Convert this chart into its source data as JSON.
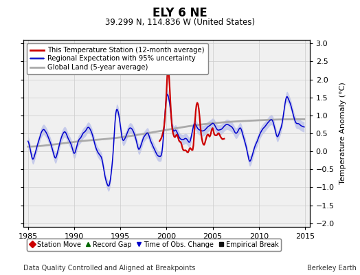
{
  "title": "ELY 6 NE",
  "subtitle": "39.299 N, 114.836 W (United States)",
  "ylabel": "Temperature Anomaly (°C)",
  "xlabel_left": "Data Quality Controlled and Aligned at Breakpoints",
  "xlabel_right": "Berkeley Earth",
  "xlim": [
    1984.5,
    2015.5
  ],
  "ylim": [
    -2.1,
    3.1
  ],
  "yticks": [
    -2,
    -1.5,
    -1,
    -0.5,
    0,
    0.5,
    1,
    1.5,
    2,
    2.5,
    3
  ],
  "xticks": [
    1985,
    1990,
    1995,
    2000,
    2005,
    2010,
    2015
  ],
  "red_color": "#cc0000",
  "blue_color": "#0000cc",
  "blue_fill_color": "#b0b8e8",
  "gray_color": "#aaaaaa",
  "background_color": "#f0f0f0",
  "legend_items": [
    {
      "label": "This Temperature Station (12-month average)",
      "color": "#cc0000",
      "lw": 2.0
    },
    {
      "label": "Regional Expectation with 95% uncertainty",
      "color": "#0000cc",
      "lw": 1.5
    },
    {
      "label": "Global Land (5-year average)",
      "color": "#aaaaaa",
      "lw": 2.0
    }
  ],
  "bottom_legend": [
    {
      "label": "Station Move",
      "marker": "D",
      "color": "#cc0000"
    },
    {
      "label": "Record Gap",
      "marker": "^",
      "color": "#006600"
    },
    {
      "label": "Time of Obs. Change",
      "marker": "v",
      "color": "#0000cc"
    },
    {
      "label": "Empirical Break",
      "marker": "s",
      "color": "#111111"
    }
  ]
}
